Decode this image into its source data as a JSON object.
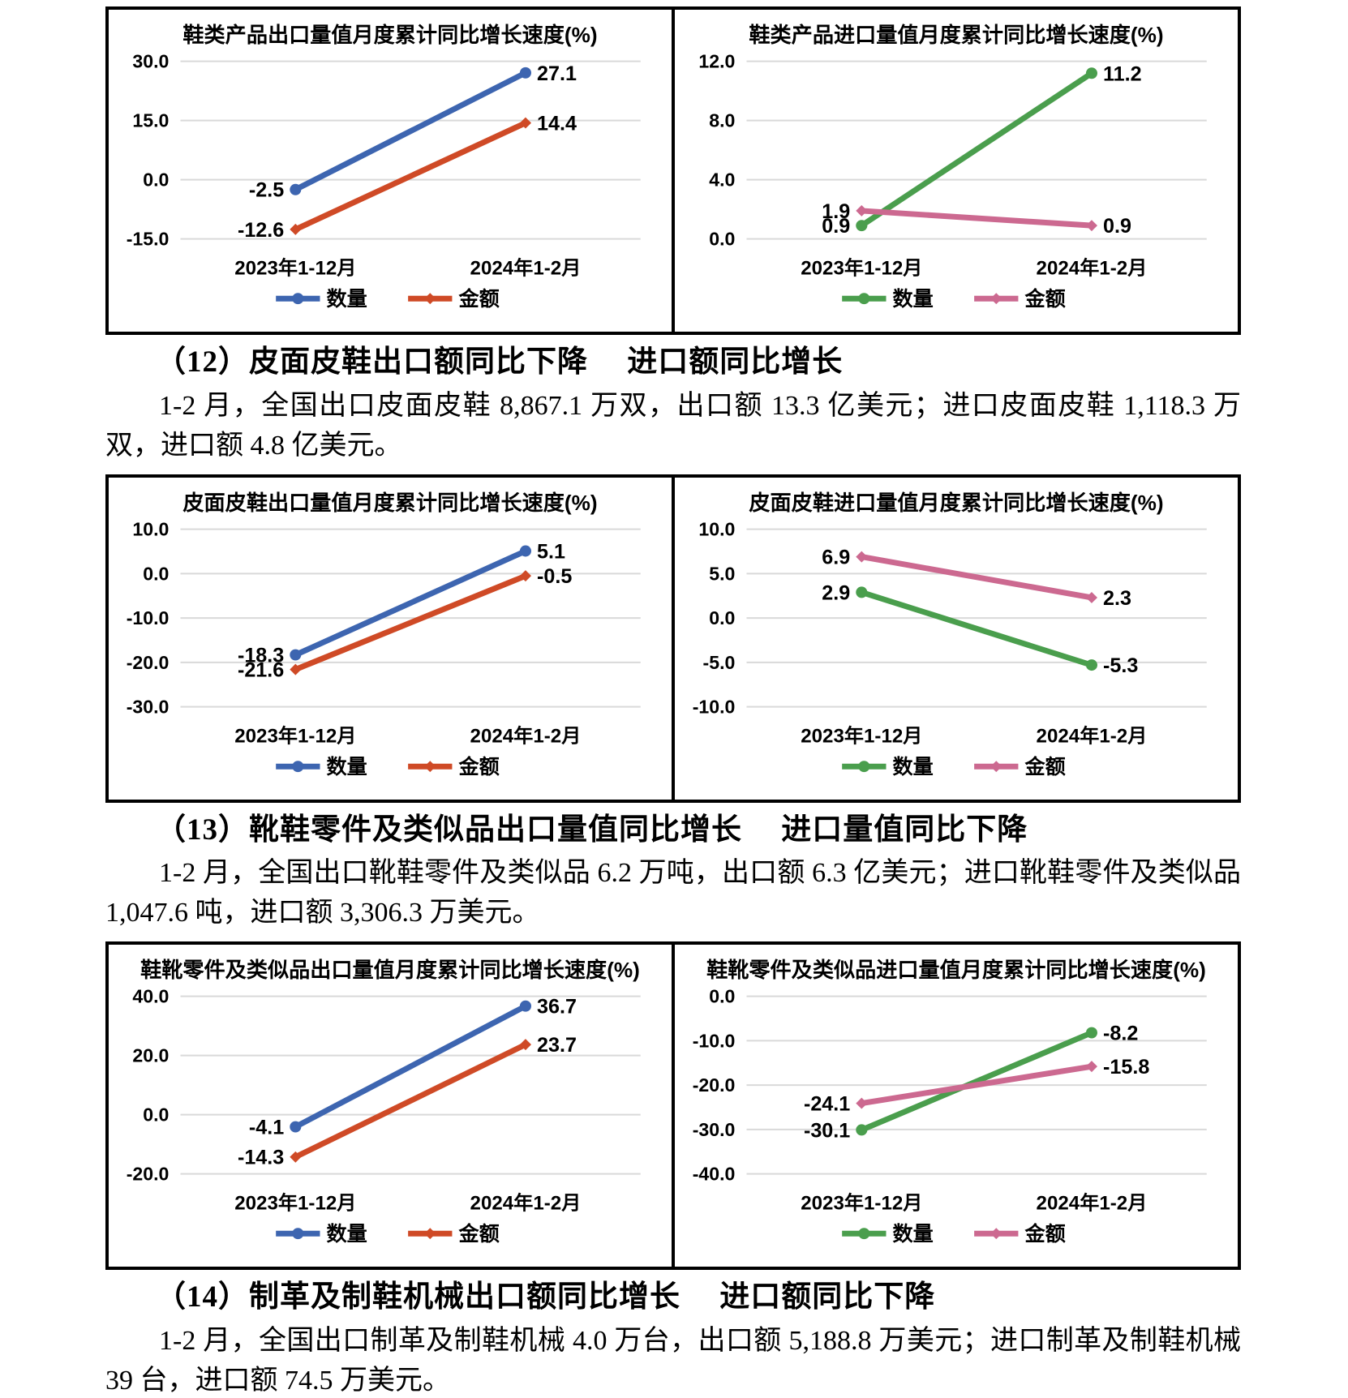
{
  "sections": [
    {
      "id": "12",
      "heading": "（12）皮面皮鞋出口额同比下降　 进口额同比增长",
      "body": "1-2 月，全国出口皮面皮鞋 8,867.1 万双，出口额 13.3 亿美元；进口皮面皮鞋 1,118.3 万双，进口额 4.8 亿美元。"
    },
    {
      "id": "13",
      "heading": "（13）靴鞋零件及类似品出口量值同比增长　 进口量值同比下降",
      "body": "1-2 月，全国出口靴鞋零件及类似品 6.2 万吨，出口额 6.3 亿美元；进口靴鞋零件及类似品 1,047.6 吨，进口额 3,306.3 万美元。"
    },
    {
      "id": "14",
      "heading": "（14）制革及制鞋机械出口额同比增长　 进口额同比下降",
      "body": "1-2 月，全国出口制革及制鞋机械 4.0 万台，出口额 5,188.8 万美元；进口制革及制鞋机械 39 台，进口额 74.5 万美元。"
    }
  ],
  "colors": {
    "quantity_export": "#3d65b0",
    "amount_export": "#cf4a26",
    "quantity_import": "#4a9e4d",
    "amount_import": "#cc6990",
    "gridline": "#d9d9d9",
    "border": "#000000"
  },
  "chart_data": [
    {
      "type": "line",
      "title": "鞋类产品出口量值月度累计同比增长速度(%)",
      "categories": [
        "2023年1-12月",
        "2024年1-2月"
      ],
      "yticks": [
        30.0,
        15.0,
        0.0,
        -15.0
      ],
      "ylim": [
        -15,
        30
      ],
      "grid": true,
      "legend_position": "bottom",
      "series": [
        {
          "name": "数量",
          "marker": "circle",
          "color": "#3d65b0",
          "values": [
            -2.5,
            27.1
          ]
        },
        {
          "name": "金额",
          "marker": "diamond",
          "color": "#cf4a26",
          "values": [
            -12.6,
            14.4
          ]
        }
      ]
    },
    {
      "type": "line",
      "title": "鞋类产品进口量值月度累计同比增长速度(%)",
      "categories": [
        "2023年1-12月",
        "2024年1-2月"
      ],
      "yticks": [
        12.0,
        8.0,
        4.0,
        0.0
      ],
      "ylim": [
        0,
        12
      ],
      "grid": true,
      "legend_position": "bottom",
      "series": [
        {
          "name": "数量",
          "marker": "circle",
          "color": "#4a9e4d",
          "values": [
            0.9,
            11.2
          ]
        },
        {
          "name": "金额",
          "marker": "diamond",
          "color": "#cc6990",
          "values": [
            1.9,
            0.9
          ]
        }
      ]
    },
    {
      "type": "line",
      "title": "皮面皮鞋出口量值月度累计同比增长速度(%)",
      "categories": [
        "2023年1-12月",
        "2024年1-2月"
      ],
      "yticks": [
        10.0,
        0.0,
        -10.0,
        -20.0,
        -30.0
      ],
      "ylim": [
        -30,
        10
      ],
      "grid": true,
      "legend_position": "bottom",
      "series": [
        {
          "name": "数量",
          "marker": "circle",
          "color": "#3d65b0",
          "values": [
            -18.3,
            5.1
          ]
        },
        {
          "name": "金额",
          "marker": "diamond",
          "color": "#cf4a26",
          "values": [
            -21.6,
            -0.5
          ]
        }
      ]
    },
    {
      "type": "line",
      "title": "皮面皮鞋进口量值月度累计同比增长速度(%)",
      "categories": [
        "2023年1-12月",
        "2024年1-2月"
      ],
      "yticks": [
        10.0,
        5.0,
        0.0,
        -5.0,
        -10.0
      ],
      "ylim": [
        -10,
        10
      ],
      "grid": true,
      "legend_position": "bottom",
      "series": [
        {
          "name": "数量",
          "marker": "circle",
          "color": "#4a9e4d",
          "values": [
            2.9,
            -5.3
          ]
        },
        {
          "name": "金额",
          "marker": "diamond",
          "color": "#cc6990",
          "values": [
            6.9,
            2.3
          ]
        }
      ]
    },
    {
      "type": "line",
      "title": "鞋靴零件及类似品出口量值月度累计同比增长速度(%)",
      "categories": [
        "2023年1-12月",
        "2024年1-2月"
      ],
      "yticks": [
        40.0,
        20.0,
        0.0,
        -20.0
      ],
      "ylim": [
        -20,
        40
      ],
      "grid": true,
      "legend_position": "bottom",
      "series": [
        {
          "name": "数量",
          "marker": "circle",
          "color": "#3d65b0",
          "values": [
            -4.1,
            36.7
          ]
        },
        {
          "name": "金额",
          "marker": "diamond",
          "color": "#cf4a26",
          "values": [
            -14.3,
            23.7
          ]
        }
      ]
    },
    {
      "type": "line",
      "title": "鞋靴零件及类似品进口量值月度累计同比增长速度(%)",
      "categories": [
        "2023年1-12月",
        "2024年1-2月"
      ],
      "yticks": [
        0.0,
        -10.0,
        -20.0,
        -30.0,
        -40.0
      ],
      "ylim": [
        -40,
        0
      ],
      "grid": true,
      "legend_position": "bottom",
      "series": [
        {
          "name": "数量",
          "marker": "circle",
          "color": "#4a9e4d",
          "values": [
            -30.1,
            -8.2
          ]
        },
        {
          "name": "金额",
          "marker": "diamond",
          "color": "#cc6990",
          "values": [
            -24.1,
            -15.8
          ]
        }
      ]
    }
  ]
}
